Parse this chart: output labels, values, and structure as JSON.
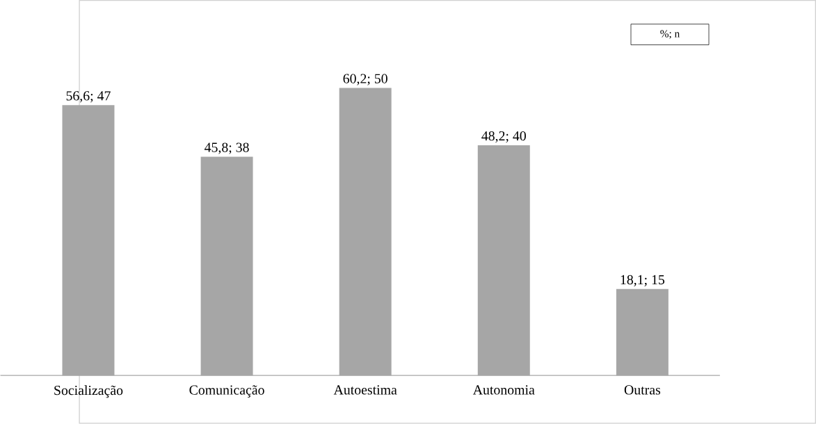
{
  "chart_data": {
    "type": "bar",
    "categories": [
      "Socialização",
      "Comunicação",
      "Autoestima",
      "Autonomia",
      "Outras"
    ],
    "values": [
      56.6,
      45.8,
      60.2,
      48.2,
      18.1
    ],
    "value_labels": [
      "56,6; 47",
      "45,8; 38",
      "60,2; 50",
      "48,2; 40",
      "18,1; 15"
    ],
    "color": "#a6a6a6",
    "annotations": [
      "%; n"
    ]
  }
}
